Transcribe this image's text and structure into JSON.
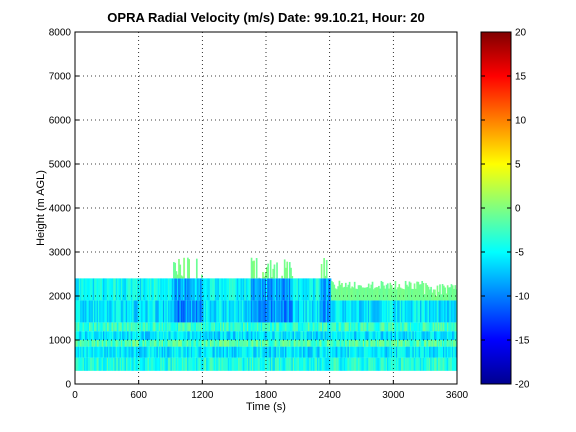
{
  "chart_data": {
    "type": "heatmap",
    "title": "OPRA Radial Velocity (m/s)  Date: 99.10.21, Hour: 20",
    "xlabel": "Time (s)",
    "ylabel": "Height (m AGL)",
    "xlim": [
      0,
      3600
    ],
    "ylim": [
      0,
      8000
    ],
    "xticks": [
      0,
      600,
      1200,
      1800,
      2400,
      3000,
      3600
    ],
    "yticks": [
      0,
      1000,
      2000,
      3000,
      4000,
      5000,
      6000,
      7000,
      8000
    ],
    "grid": true,
    "colormap": "jet",
    "colorbar": {
      "range": [
        -20,
        20
      ],
      "ticks": [
        20,
        15,
        10,
        5,
        0,
        -5,
        -10,
        -15,
        -20
      ]
    },
    "height_bands": [
      {
        "y": [
          300,
          600
        ],
        "velocity": -4
      },
      {
        "y": [
          600,
          850
        ],
        "velocity": -6
      },
      {
        "y": [
          850,
          1000
        ],
        "velocity": -2
      },
      {
        "y": [
          1000,
          1200
        ],
        "velocity": -6
      },
      {
        "y": [
          1200,
          1400
        ],
        "velocity": -3
      },
      {
        "y": [
          1400,
          1900
        ],
        "velocity": -6
      },
      {
        "y": [
          1900,
          2400
        ],
        "velocity": -5
      }
    ],
    "max_echo_top": 2900,
    "colors": {
      "jet": [
        "#00008f",
        "#0000ff",
        "#0080ff",
        "#00ffff",
        "#80ff80",
        "#ffff00",
        "#ff8000",
        "#ff0000",
        "#800000"
      ]
    }
  }
}
